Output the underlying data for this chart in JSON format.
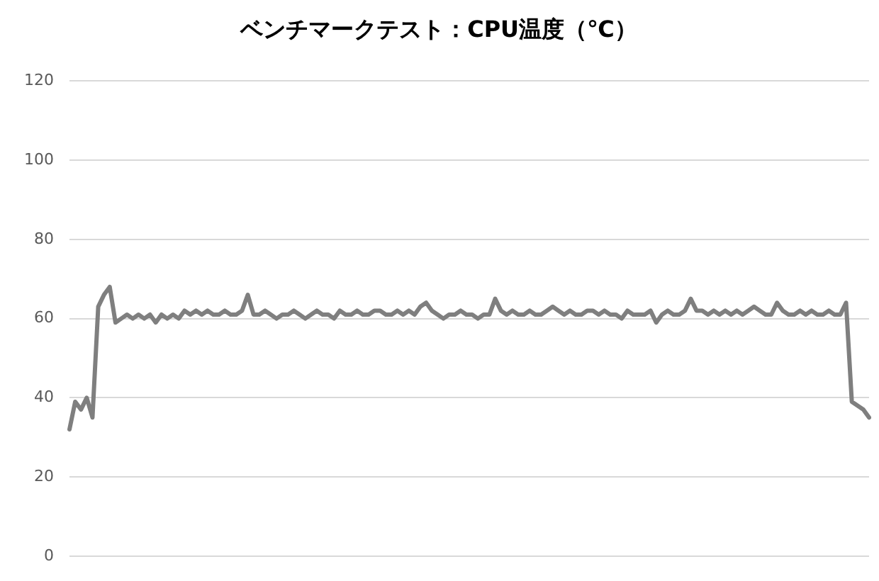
{
  "chart_data": {
    "type": "line",
    "title": "ベンチマークテスト：CPU温度（℃）",
    "categories": [
      null,
      null,
      null,
      null,
      null,
      null,
      null,
      null,
      null,
      null,
      null,
      null,
      null,
      null,
      null,
      null,
      null,
      null,
      null,
      null,
      null,
      null,
      null,
      null,
      null,
      null,
      null,
      null,
      null,
      null,
      null,
      null,
      null,
      null,
      null,
      null,
      null,
      null,
      null,
      null,
      null,
      null,
      null,
      null,
      null,
      null,
      null,
      null,
      null,
      null,
      null,
      null,
      null,
      null,
      null,
      null,
      null,
      null,
      null,
      null,
      null,
      null,
      null,
      null,
      null,
      null,
      null,
      null,
      null,
      null,
      null,
      null,
      null,
      null,
      null,
      null,
      null,
      null,
      null,
      null,
      null,
      null,
      null,
      null,
      null,
      null,
      null,
      null,
      null,
      null,
      null,
      null,
      null,
      null,
      null,
      null,
      null,
      null,
      null,
      null,
      null,
      null,
      null,
      null,
      null,
      null,
      null,
      null,
      null,
      null,
      null,
      null,
      null,
      null,
      null,
      null,
      null,
      null,
      null,
      null,
      null,
      null,
      null,
      null,
      null,
      null,
      null,
      null,
      null,
      null,
      null,
      null,
      null,
      null,
      null,
      null,
      null,
      null,
      null,
      null
    ],
    "series": [
      {
        "color": "#7f7f7f",
        "values": [
          32,
          39,
          37,
          40,
          35,
          63,
          66,
          68,
          59,
          60,
          61,
          60,
          61,
          60,
          61,
          59,
          61,
          60,
          61,
          60,
          62,
          61,
          62,
          61,
          62,
          61,
          61,
          62,
          61,
          61,
          62,
          66,
          61,
          61,
          62,
          61,
          60,
          61,
          61,
          62,
          61,
          60,
          61,
          62,
          61,
          61,
          60,
          62,
          61,
          61,
          62,
          61,
          61,
          62,
          62,
          61,
          61,
          62,
          61,
          62,
          61,
          63,
          64,
          62,
          61,
          60,
          61,
          61,
          62,
          61,
          61,
          60,
          61,
          61,
          65,
          62,
          61,
          62,
          61,
          61,
          62,
          61,
          61,
          62,
          63,
          62,
          61,
          62,
          61,
          61,
          62,
          62,
          61,
          62,
          61,
          61,
          60,
          62,
          61,
          61,
          61,
          62,
          59,
          61,
          62,
          61,
          61,
          62,
          65,
          62,
          62,
          61,
          62,
          61,
          62,
          61,
          62,
          61,
          62,
          63,
          62,
          61,
          61,
          64,
          62,
          61,
          61,
          62,
          61,
          62,
          61,
          61,
          62,
          61,
          61,
          64,
          39,
          38,
          37,
          35
        ]
      }
    ],
    "ylim": [
      0,
      120
    ],
    "yticks": [
      0,
      20,
      40,
      60,
      80,
      100,
      120
    ],
    "grid": "y",
    "tick_labels": "y",
    "marker": "none",
    "line_style": "solid"
  }
}
